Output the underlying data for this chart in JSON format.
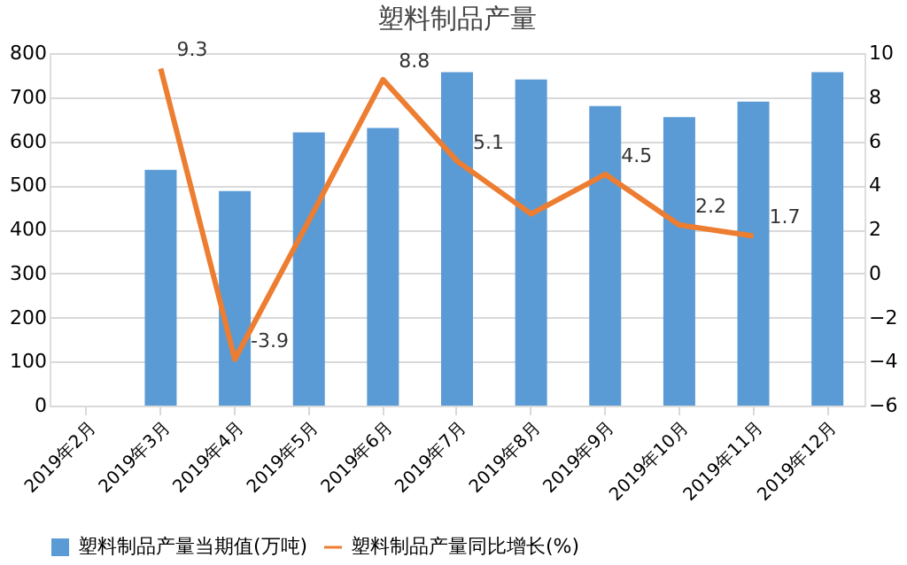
{
  "chart_data": {
    "type": "bar",
    "title": "塑料制品产量",
    "categories": [
      "2019年2月",
      "2019年3月",
      "2019年4月",
      "2019年5月",
      "2019年6月",
      "2019年7月",
      "2019年8月",
      "2019年9月",
      "2019年10月",
      "2019年11月",
      "2019年12月"
    ],
    "series": [
      {
        "name": "塑料制品产量当期值(万吨)",
        "color": "#5b9bd5",
        "values": [
          null,
          535,
          487,
          620,
          630,
          757,
          740,
          680,
          655,
          690,
          757
        ]
      },
      {
        "name": "塑料制品产量同比增长(%)",
        "color": "#ed7d31",
        "type": "line",
        "axis": "y2",
        "values": [
          null,
          9.3,
          -3.9,
          2.4,
          8.8,
          5.1,
          2.7,
          4.5,
          2.2,
          1.7,
          null
        ],
        "value_labels": [
          null,
          "9.3",
          "-3.9",
          null,
          "8.8",
          "5.1",
          null,
          "4.5",
          "2.2",
          "1.7",
          null
        ]
      }
    ],
    "ylim": [
      0,
      800
    ],
    "yticks": [
      0,
      100,
      200,
      300,
      400,
      500,
      600,
      700,
      800
    ],
    "y2lim": [
      -6,
      10
    ],
    "y2ticks": [
      -6,
      -4,
      -2,
      0,
      2,
      4,
      6,
      8,
      10
    ],
    "grid": "y",
    "legend": "bottom"
  }
}
